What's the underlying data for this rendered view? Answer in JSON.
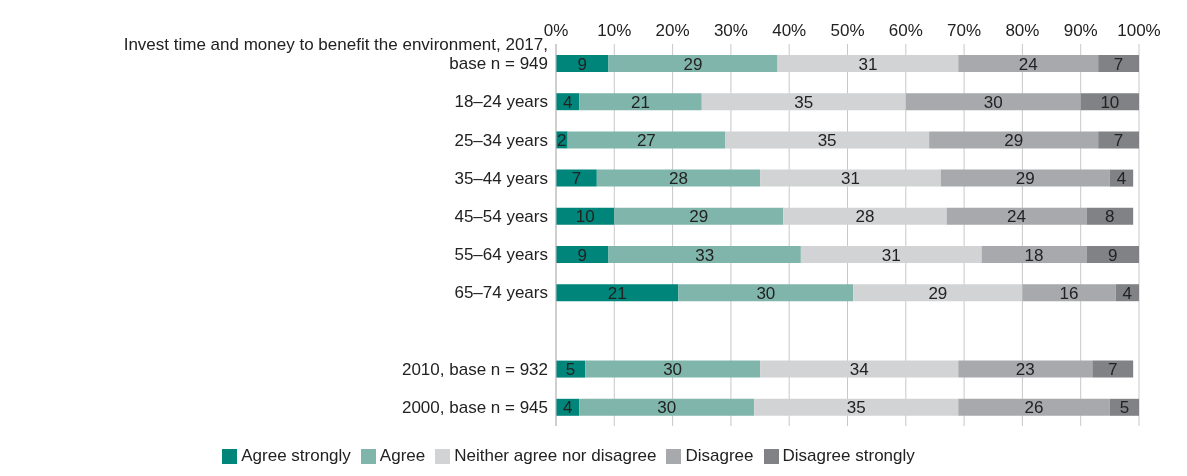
{
  "chart_data": {
    "type": "bar",
    "orientation": "horizontal",
    "stacked": true,
    "categories": [
      "Invest time and money to benefit the environment, 2017, base n = 949",
      "18–24 years",
      "25–34 years",
      "35–44 years",
      "45–54 years",
      "55–64 years",
      "65–74 years",
      null,
      "2010, base n = 932",
      "2000, base n = 945"
    ],
    "series": [
      {
        "name": "Agree strongly",
        "color": "#00857a",
        "values": [
          9,
          4,
          2,
          7,
          10,
          9,
          21,
          null,
          5,
          4
        ]
      },
      {
        "name": "Agree",
        "color": "#7fb5ab",
        "values": [
          29,
          21,
          27,
          28,
          29,
          33,
          30,
          null,
          30,
          30
        ]
      },
      {
        "name": "Neither agree nor disagree",
        "color": "#d1d3d4",
        "values": [
          31,
          35,
          35,
          31,
          28,
          31,
          29,
          null,
          34,
          35
        ]
      },
      {
        "name": "Disagree",
        "color": "#a7a9ac",
        "values": [
          24,
          30,
          29,
          29,
          24,
          18,
          16,
          null,
          23,
          26
        ]
      },
      {
        "name": "Disagree strongly",
        "color": "#808285",
        "values": [
          7,
          10,
          7,
          4,
          8,
          9,
          4,
          null,
          7,
          5
        ]
      }
    ],
    "xlim": [
      0,
      100
    ],
    "xticks": [
      {
        "value": 0,
        "label": "0%"
      },
      {
        "value": 10,
        "label": "10%"
      },
      {
        "value": 20,
        "label": "20%"
      },
      {
        "value": 30,
        "label": "30%"
      },
      {
        "value": 40,
        "label": "40%"
      },
      {
        "value": 50,
        "label": "50%"
      },
      {
        "value": 60,
        "label": "60%"
      },
      {
        "value": 70,
        "label": "70%"
      },
      {
        "value": 80,
        "label": "80%"
      },
      {
        "value": 90,
        "label": "90%"
      },
      {
        "value": 100,
        "label": "100%"
      }
    ],
    "grid": "x",
    "legend": "bottom",
    "data_labels": true
  }
}
